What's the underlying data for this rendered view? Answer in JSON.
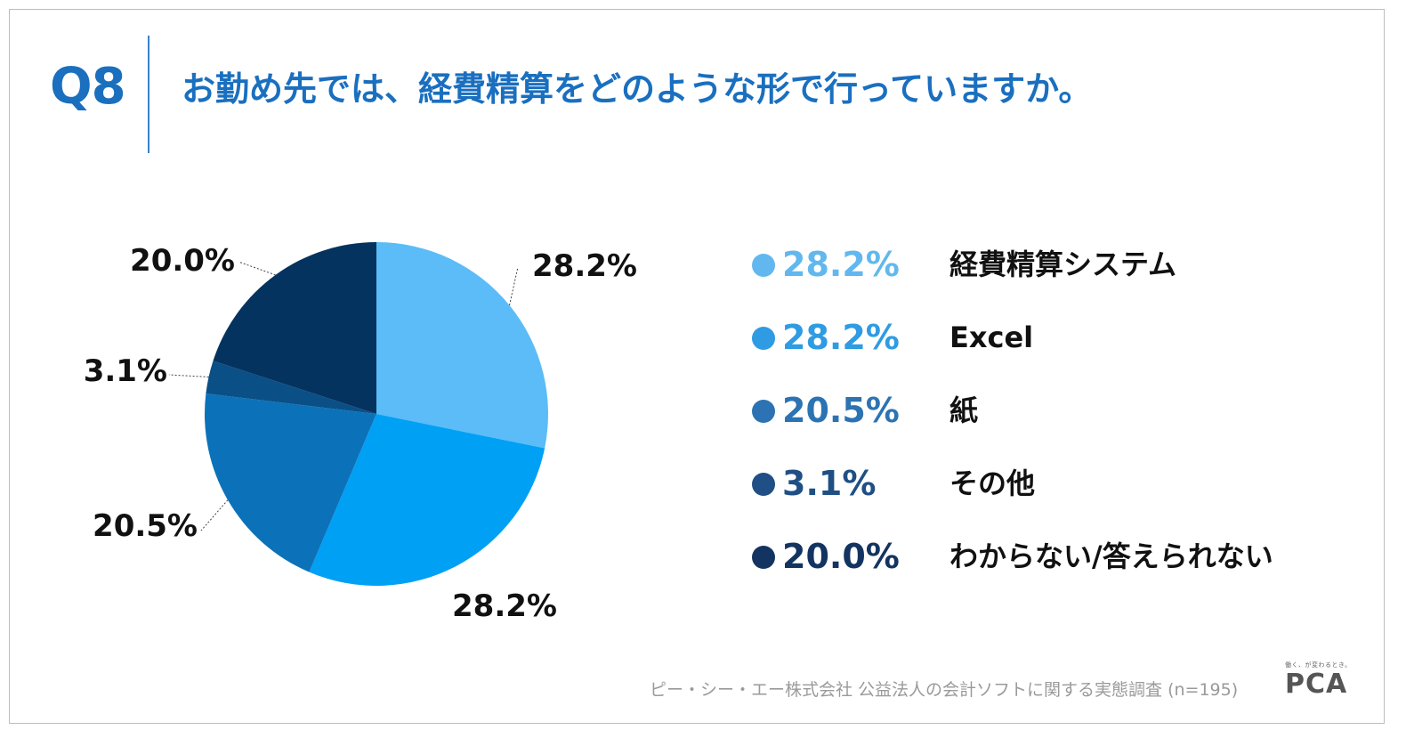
{
  "header": {
    "q_label": "Q8",
    "question": "お勤め先では、経費精算をどのような形で行っていますか。"
  },
  "chart_data": {
    "type": "pie",
    "title": "お勤め先では、経費精算をどのような形で行っていますか。",
    "slices": [
      {
        "label": "経費精算システム",
        "value": 28.2,
        "display": "28.2%",
        "color": "#5bbcf7"
      },
      {
        "label": "Excel",
        "value": 28.2,
        "display": "28.2%",
        "color": "#00a0f5"
      },
      {
        "label": "紙",
        "value": 20.5,
        "display": "20.5%",
        "color": "#0b72b9"
      },
      {
        "label": "その他",
        "value": 3.1,
        "display": "3.1%",
        "color": "#0a4f86"
      },
      {
        "label": "わからない/答えられない",
        "value": 20.0,
        "display": "20.0%",
        "color": "#05335f"
      }
    ],
    "legend_position": "right",
    "legend_pct_colors": [
      "#62b8ee",
      "#2f9be3",
      "#2c73b3",
      "#1f4f84",
      "#133461"
    ]
  },
  "footer": {
    "source": "ピー・シー・エー株式会社 公益法人の会計ソフトに関する実態調査 (n=195)",
    "logo_tagline": "働く、が変わるとき。",
    "logo_text": "PCA"
  }
}
